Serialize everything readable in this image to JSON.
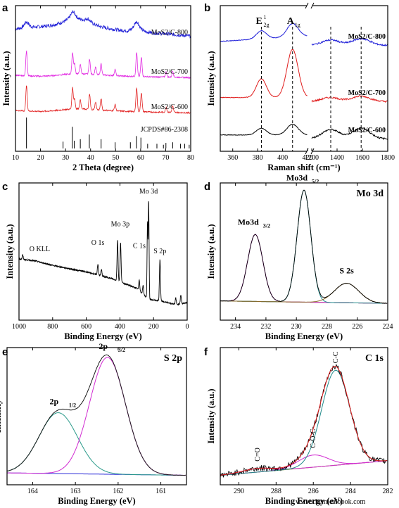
{
  "watermark": "www.chemicalbook.com",
  "chart_data": [
    {
      "panel": "a",
      "type": "line",
      "xlabel": "2 Theta (degree)",
      "ylabel": "Intensity (a.u.)",
      "xlim": [
        10,
        80
      ],
      "xticks": [
        10,
        20,
        30,
        40,
        50,
        60,
        70,
        80
      ],
      "series": [
        {
          "name": "MoS2/C-800",
          "color": "#2323d8",
          "x": [
            10,
            15,
            20,
            25,
            28,
            30,
            33,
            35,
            38,
            40,
            44,
            48,
            52,
            55,
            58,
            62,
            66,
            70,
            75,
            80
          ],
          "y": [
            0.55,
            0.6,
            0.62,
            0.68,
            0.75,
            0.82,
            0.98,
            0.9,
            0.82,
            0.75,
            0.62,
            0.55,
            0.5,
            0.48,
            0.6,
            0.45,
            0.4,
            0.38,
            0.34,
            0.3
          ],
          "peaks": [
            [
              14.4,
              0.18
            ],
            [
              33,
              0.15
            ],
            [
              39,
              0.1
            ],
            [
              58.5,
              0.2
            ]
          ]
        },
        {
          "name": "MoS2/C-700",
          "color": "#e22be2",
          "x": [
            10,
            20,
            25,
            30,
            35,
            40,
            45,
            50,
            55,
            60,
            65,
            70,
            75,
            80
          ],
          "y": [
            0.25,
            0.22,
            0.24,
            0.28,
            0.3,
            0.28,
            0.26,
            0.24,
            0.22,
            0.22,
            0.2,
            0.2,
            0.19,
            0.18
          ],
          "peaks": [
            [
              14.4,
              1.0
            ],
            [
              32.8,
              0.85
            ],
            [
              33.6,
              0.4
            ],
            [
              35.9,
              0.35
            ],
            [
              39.6,
              0.6
            ],
            [
              42,
              0.3
            ],
            [
              44.2,
              0.45
            ],
            [
              49.8,
              0.25
            ],
            [
              58.4,
              0.95
            ],
            [
              60.3,
              0.75
            ],
            [
              70.2,
              0.2
            ],
            [
              72.8,
              0.25
            ]
          ]
        },
        {
          "name": "MoS2/C-600",
          "color": "#e22222",
          "x": [
            10,
            20,
            25,
            30,
            35,
            40,
            45,
            50,
            55,
            60,
            65,
            70,
            75,
            80
          ],
          "y": [
            0.25,
            0.22,
            0.24,
            0.28,
            0.3,
            0.28,
            0.26,
            0.24,
            0.22,
            0.22,
            0.2,
            0.2,
            0.19,
            0.18
          ],
          "peaks": [
            [
              14.4,
              1.0
            ],
            [
              32.8,
              0.85
            ],
            [
              33.6,
              0.4
            ],
            [
              35.9,
              0.35
            ],
            [
              39.6,
              0.6
            ],
            [
              42,
              0.3
            ],
            [
              44.2,
              0.45
            ],
            [
              49.8,
              0.25
            ],
            [
              58.4,
              0.95
            ],
            [
              60.3,
              0.75
            ],
            [
              70.2,
              0.2
            ],
            [
              72.8,
              0.25
            ]
          ]
        }
      ],
      "reference": {
        "name": "JCPDS#86-2308",
        "positions": [
          14.4,
          29,
          32.7,
          33.5,
          35.9,
          39.5,
          44.2,
          49.8,
          55.9,
          58.3,
          60.1,
          62.8,
          66.5,
          69.1,
          70.1,
          72.8,
          75.9,
          77.6,
          79.4
        ],
        "heights": [
          1.0,
          0.22,
          0.7,
          0.25,
          0.3,
          0.45,
          0.3,
          0.2,
          0.2,
          0.4,
          0.35,
          0.15,
          0.15,
          0.12,
          0.18,
          0.2,
          0.15,
          0.15,
          0.12
        ]
      }
    },
    {
      "panel": "b",
      "type": "line",
      "xlabel": "Raman shift (cm⁻¹)",
      "ylabel": "Intensity (a.u.)",
      "xbreak": true,
      "left_range": [
        350,
        420
      ],
      "left_ticks": [
        360,
        380,
        400,
        420
      ],
      "right_range": [
        1200,
        1800
      ],
      "right_ticks": [
        1200,
        1400,
        1600,
        1800
      ],
      "peak_markers_left": [
        {
          "label": "E",
          "sup": "1",
          "sub": "2g",
          "x": 383
        },
        {
          "label": "A",
          "sub": "1g",
          "x": 408
        }
      ],
      "dashed_lines_left": [
        383,
        408
      ],
      "dashed_lines_right": [
        1350,
        1590
      ],
      "series": [
        {
          "name": "MoS2/C-800",
          "color": "#1c1cd8",
          "baseline": 0.78,
          "left_peaks": [
            [
              383,
              0.06
            ],
            [
              408,
              0.1
            ]
          ],
          "right_peaks": [
            [
              1350,
              0.04
            ],
            [
              1590,
              0.05
            ]
          ]
        },
        {
          "name": "MoS2/C-700",
          "color": "#e01c1c",
          "baseline": 0.36,
          "left_peaks": [
            [
              383,
              0.14
            ],
            [
              408,
              0.36
            ]
          ],
          "right_peaks": [
            [
              1350,
              0.03
            ],
            [
              1590,
              0.04
            ]
          ]
        },
        {
          "name": "MoS2/C-600",
          "color": "#000000",
          "baseline": 0.08,
          "left_peaks": [
            [
              383,
              0.05
            ],
            [
              408,
              0.08
            ]
          ],
          "right_peaks": [
            [
              1350,
              0.07
            ],
            [
              1590,
              0.08
            ]
          ]
        }
      ]
    },
    {
      "panel": "c",
      "type": "line",
      "xlabel": "Binding Energy (eV)",
      "ylabel": "Intensity (a.u.)",
      "xlim": [
        1000,
        0
      ],
      "xticks": [
        1000,
        800,
        600,
        400,
        200,
        0
      ],
      "annotations": [
        {
          "text": "O KLL",
          "x": 980
        },
        {
          "text": "O 1s",
          "x": 531
        },
        {
          "text": "Mo 3p",
          "x": 398
        },
        {
          "text": "C 1s",
          "x": 285
        },
        {
          "text": "Mo 3d",
          "x": 230
        },
        {
          "text": "S 2p",
          "x": 162
        }
      ],
      "peaks": [
        [
          978,
          0.04
        ],
        [
          531,
          0.1
        ],
        [
          510,
          0.06
        ],
        [
          414,
          0.38
        ],
        [
          396,
          0.36
        ],
        [
          285,
          0.1
        ],
        [
          262,
          0.08
        ],
        [
          236,
          0.7
        ],
        [
          229,
          0.9
        ],
        [
          162,
          0.38
        ],
        [
          68,
          0.06
        ],
        [
          38,
          0.08
        ]
      ],
      "background": [
        [
          1000,
          0.42
        ],
        [
          900,
          0.4
        ],
        [
          800,
          0.36
        ],
        [
          600,
          0.3
        ],
        [
          450,
          0.24
        ],
        [
          300,
          0.15
        ],
        [
          230,
          0.05
        ],
        [
          150,
          0.03
        ],
        [
          60,
          0.0
        ],
        [
          0,
          0.02
        ]
      ],
      "color": "#000000"
    },
    {
      "panel": "d",
      "type": "line",
      "title": "Mo 3d",
      "xlabel": "Binding Energy (eV)",
      "ylabel": "Intensity (a.u.)",
      "xlim": [
        235,
        224
      ],
      "xticks": [
        234,
        232,
        230,
        228,
        226,
        224
      ],
      "components": [
        {
          "label": "Mo3d",
          "sub": "3/2",
          "center": 232.7,
          "height": 0.55,
          "width": 0.5,
          "color": "#d12ad1"
        },
        {
          "label": "Mo3d",
          "sub": "5/2",
          "center": 229.5,
          "height": 0.92,
          "width": 0.45,
          "color": "#1f8a8a"
        },
        {
          "label": "S 2s",
          "center": 226.7,
          "height": 0.16,
          "width": 0.8,
          "color": "#8a6a2a"
        }
      ],
      "background_color": "#6a4a10"
    },
    {
      "panel": "e",
      "type": "line",
      "title": "S 2p",
      "xlabel": "Binding Energy (eV)",
      "ylabel": "Intensity",
      "xlim": [
        164.6,
        160.4
      ],
      "xticks": [
        164,
        163,
        162,
        161
      ],
      "components": [
        {
          "label": "2p",
          "sub": "1/2",
          "center": 163.4,
          "height": 0.5,
          "width": 0.45,
          "color": "#2a9a8a"
        },
        {
          "label": "2p",
          "sub": "3/2",
          "center": 162.25,
          "height": 0.96,
          "width": 0.42,
          "color": "#d12ad1"
        }
      ],
      "background_color": "#2a2ad8",
      "envelope_color": "#8a2a2a"
    },
    {
      "panel": "f",
      "type": "line",
      "title": "C 1s",
      "xlabel": "Binding Energy (eV)",
      "ylabel": "Intensity (a.u.)",
      "xlim": [
        291,
        282
      ],
      "xticks": [
        290,
        288,
        286,
        284,
        282
      ],
      "components": [
        {
          "label": "C=O",
          "center": 289.0,
          "height": 0.03,
          "width": 0.8,
          "color": "#d12ad1"
        },
        {
          "label": "C-O-C",
          "center": 286.0,
          "height": 0.1,
          "width": 0.8,
          "color": "#d12ad1"
        },
        {
          "label": "C-C",
          "center": 284.8,
          "height": 0.78,
          "width": 0.75,
          "color": "#1f8a8a"
        }
      ],
      "background_color": "#7a8a10",
      "fit_color": "#e01c1c"
    }
  ]
}
